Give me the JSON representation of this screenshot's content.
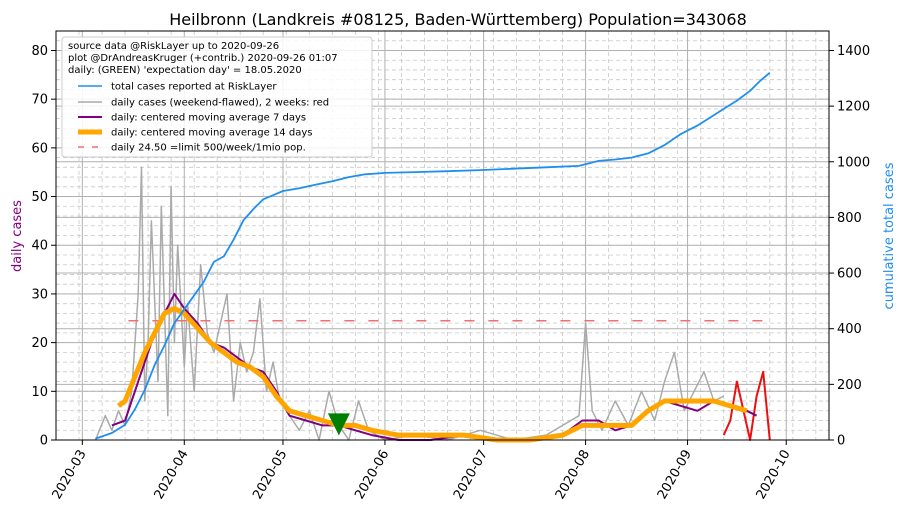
{
  "chart_data": {
    "type": "line",
    "title": "Heilbronn (Landkreis #08125, Baden-Württemberg) Population=343068",
    "ylabel_left": "daily cases",
    "ylabel_right": "cumulative total cases",
    "ylim_left": [
      0,
      84
    ],
    "ylim_right": [
      0,
      1470
    ],
    "yticks_left": [
      0,
      10,
      20,
      30,
      40,
      50,
      60,
      70,
      80
    ],
    "yticks_right": [
      0,
      200,
      400,
      600,
      800,
      1000,
      1200,
      1400
    ],
    "xlim": [
      "2020-02-22",
      "2020-10-14"
    ],
    "xticks": [
      "2020-03",
      "2020-04",
      "2020-05",
      "2020-06",
      "2020-07",
      "2020-08",
      "2020-09",
      "2020-10"
    ],
    "xtick_dates": [
      "2020-03-01",
      "2020-04-01",
      "2020-05-01",
      "2020-06-01",
      "2020-07-01",
      "2020-08-01",
      "2020-09-01",
      "2020-10-01"
    ],
    "grid": true,
    "legend_position": "top-left",
    "legend_text": [
      "source data @RiskLayer up to 2020-09-26",
      "plot @DrAndreasKruger (+contrib.) 2020-09-26 01:07",
      "daily: (GREEN) 'expectation day' = 18.05.2020"
    ],
    "colors": {
      "total": "#1f8fef",
      "daily": "#aaaaaa",
      "daily_recent": "#e81010",
      "ma7": "#800080",
      "ma14": "#ffa500",
      "limit": "#f07070",
      "marker": "#008000",
      "left_label": "#800080",
      "right_label": "#1f8fef"
    },
    "series": [
      {
        "name": "total cases reported at RiskLayer",
        "axis": "right",
        "x": [
          "2020-03-05",
          "2020-03-10",
          "2020-03-14",
          "2020-03-17",
          "2020-03-20",
          "2020-03-23",
          "2020-03-26",
          "2020-03-29",
          "2020-04-01",
          "2020-04-04",
          "2020-04-07",
          "2020-04-10",
          "2020-04-13",
          "2020-04-16",
          "2020-04-19",
          "2020-04-22",
          "2020-04-25",
          "2020-04-28",
          "2020-05-01",
          "2020-05-06",
          "2020-05-11",
          "2020-05-16",
          "2020-05-21",
          "2020-05-26",
          "2020-06-01",
          "2020-06-10",
          "2020-06-20",
          "2020-06-30",
          "2020-07-10",
          "2020-07-20",
          "2020-07-30",
          "2020-08-05",
          "2020-08-10",
          "2020-08-15",
          "2020-08-20",
          "2020-08-25",
          "2020-08-30",
          "2020-09-04",
          "2020-09-08",
          "2020-09-12",
          "2020-09-16",
          "2020-09-20",
          "2020-09-23",
          "2020-09-26"
        ],
        "values": [
          5,
          25,
          55,
          110,
          180,
          270,
          340,
          420,
          470,
          520,
          570,
          640,
          660,
          720,
          790,
          830,
          865,
          880,
          895,
          905,
          918,
          930,
          945,
          955,
          960,
          963,
          966,
          970,
          975,
          980,
          985,
          1003,
          1008,
          1015,
          1030,
          1060,
          1100,
          1130,
          1160,
          1190,
          1220,
          1255,
          1290,
          1320
        ]
      },
      {
        "name": "daily cases (weekend-flawed), 2 weeks: red",
        "axis": "left",
        "x": [
          "2020-03-05",
          "2020-03-08",
          "2020-03-10",
          "2020-03-12",
          "2020-03-14",
          "2020-03-16",
          "2020-03-18",
          "2020-03-19",
          "2020-03-20",
          "2020-03-21",
          "2020-03-22",
          "2020-03-24",
          "2020-03-25",
          "2020-03-27",
          "2020-03-28",
          "2020-03-29",
          "2020-03-30",
          "2020-04-01",
          "2020-04-02",
          "2020-04-04",
          "2020-04-06",
          "2020-04-08",
          "2020-04-10",
          "2020-04-12",
          "2020-04-14",
          "2020-04-16",
          "2020-04-18",
          "2020-04-20",
          "2020-04-22",
          "2020-04-24",
          "2020-04-26",
          "2020-04-28",
          "2020-04-30",
          "2020-05-03",
          "2020-05-06",
          "2020-05-09",
          "2020-05-12",
          "2020-05-15",
          "2020-05-18",
          "2020-05-21",
          "2020-05-24",
          "2020-05-27",
          "2020-06-01",
          "2020-06-10",
          "2020-06-20",
          "2020-06-30",
          "2020-07-10",
          "2020-07-20",
          "2020-07-30",
          "2020-08-01",
          "2020-08-03",
          "2020-08-06",
          "2020-08-10",
          "2020-08-14",
          "2020-08-18",
          "2020-08-22",
          "2020-08-25",
          "2020-08-28",
          "2020-08-31",
          "2020-09-03",
          "2020-09-06",
          "2020-09-09",
          "2020-09-12"
        ],
        "values": [
          0,
          5,
          2,
          6,
          3,
          10,
          30,
          56,
          8,
          20,
          45,
          12,
          48,
          5,
          52,
          20,
          40,
          15,
          28,
          10,
          36,
          22,
          18,
          24,
          30,
          8,
          20,
          14,
          18,
          29,
          10,
          16,
          8,
          5,
          2,
          6,
          0,
          10,
          3,
          0,
          8,
          2,
          0,
          1,
          0,
          2,
          0,
          1,
          5,
          24,
          6,
          2,
          8,
          3,
          10,
          4,
          12,
          18,
          6,
          10,
          14,
          8,
          9
        ]
      },
      {
        "name": "daily cases (weekend-flawed), 2 weeks: red",
        "axis": "left",
        "x": [
          "2020-09-12",
          "2020-09-14",
          "2020-09-16",
          "2020-09-18",
          "2020-09-20",
          "2020-09-22",
          "2020-09-24",
          "2020-09-26"
        ],
        "values": [
          1,
          4,
          12,
          6,
          0,
          9,
          14,
          0
        ]
      },
      {
        "name": "daily: centered moving average 7 days",
        "axis": "left",
        "x": [
          "2020-03-10",
          "2020-03-14",
          "2020-03-18",
          "2020-03-22",
          "2020-03-26",
          "2020-03-29",
          "2020-04-01",
          "2020-04-05",
          "2020-04-09",
          "2020-04-13",
          "2020-04-17",
          "2020-04-21",
          "2020-04-25",
          "2020-04-29",
          "2020-05-03",
          "2020-05-08",
          "2020-05-13",
          "2020-05-18",
          "2020-05-23",
          "2020-05-28",
          "2020-06-05",
          "2020-06-15",
          "2020-06-25",
          "2020-07-05",
          "2020-07-15",
          "2020-07-25",
          "2020-07-31",
          "2020-08-05",
          "2020-08-10",
          "2020-08-15",
          "2020-08-20",
          "2020-08-25",
          "2020-08-30",
          "2020-09-04",
          "2020-09-09",
          "2020-09-14",
          "2020-09-19",
          "2020-09-22"
        ],
        "values": [
          3,
          4,
          12,
          20,
          26,
          30,
          27,
          24,
          20,
          19,
          17,
          15,
          14,
          10,
          5,
          4,
          3,
          3,
          2,
          1,
          0,
          0,
          1,
          0,
          0,
          1,
          4,
          4,
          2,
          3,
          6,
          8,
          7,
          6,
          8,
          7,
          6,
          5
        ]
      },
      {
        "name": "daily: centered moving average 14 days",
        "axis": "left",
        "x": [
          "2020-03-12",
          "2020-03-14",
          "2020-03-17",
          "2020-03-20",
          "2020-03-23",
          "2020-03-26",
          "2020-03-29",
          "2020-04-01",
          "2020-04-05",
          "2020-04-09",
          "2020-04-13",
          "2020-04-17",
          "2020-04-21",
          "2020-04-25",
          "2020-04-29",
          "2020-05-03",
          "2020-05-08",
          "2020-05-13",
          "2020-05-18",
          "2020-05-23",
          "2020-05-28",
          "2020-06-05",
          "2020-06-15",
          "2020-06-25",
          "2020-07-05",
          "2020-07-15",
          "2020-07-25",
          "2020-07-31",
          "2020-08-05",
          "2020-08-10",
          "2020-08-15",
          "2020-08-20",
          "2020-08-25",
          "2020-08-30",
          "2020-09-04",
          "2020-09-09",
          "2020-09-14",
          "2020-09-19"
        ],
        "values": [
          7,
          8,
          13,
          18,
          22,
          26,
          27,
          26,
          23,
          20,
          18,
          16,
          15,
          13,
          9,
          6,
          5,
          4,
          3,
          3,
          2,
          1,
          1,
          1,
          0,
          0,
          1,
          3,
          3,
          3,
          3,
          6,
          8,
          8,
          8,
          8,
          7,
          6
        ]
      },
      {
        "name": "daily 24.50 =limit 500/week/1mio pop.",
        "axis": "left",
        "x": [
          "2020-03-15",
          "2020-09-26"
        ],
        "values": [
          24.5,
          24.5
        ]
      }
    ],
    "annotations": [
      {
        "type": "marker",
        "shape": "triangle-down",
        "x": "2020-05-18",
        "value": 3,
        "label": "expectation day"
      }
    ]
  }
}
